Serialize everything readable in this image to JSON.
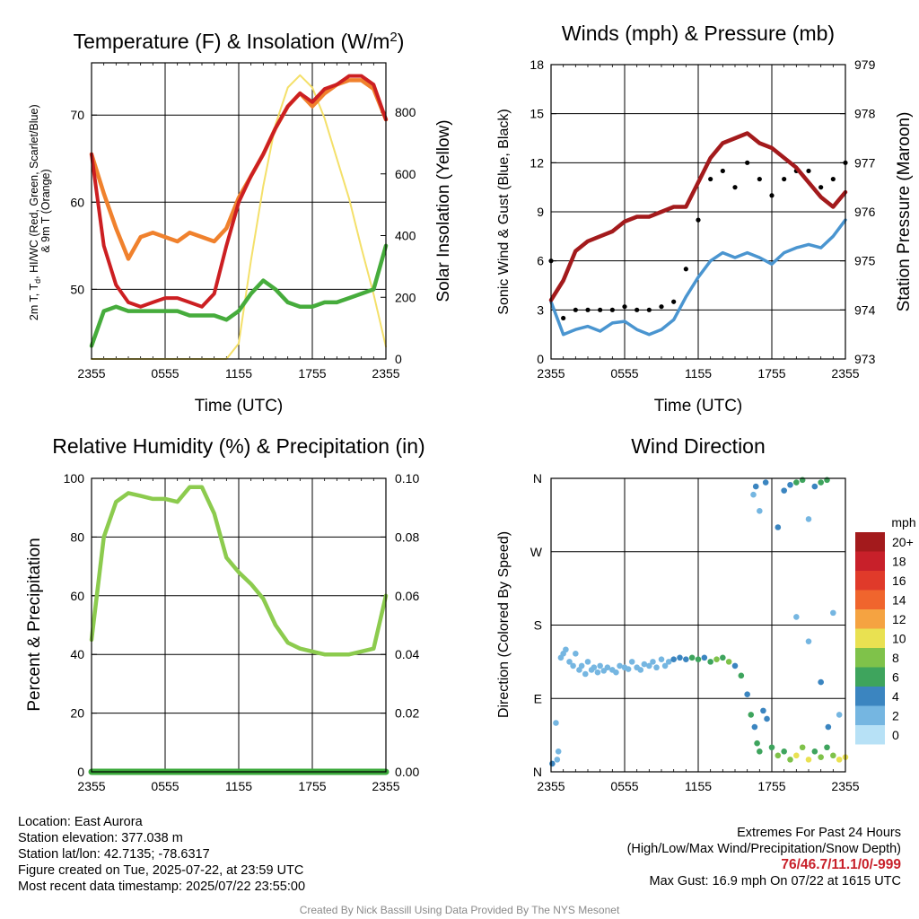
{
  "colors": {
    "temp": "#cc1f22",
    "temp9m": "#f0812d",
    "dewpoint": "#46ac3c",
    "insolation": "#f4e06a",
    "wind": "#4a95d0",
    "gust": "#000000",
    "pressure": "#a31a1c",
    "rh": "#8ccb4e",
    "precip": "#3aa83a"
  },
  "wind_speed_scale": {
    "unit": "mph",
    "labels": [
      "20+",
      "18",
      "16",
      "14",
      "12",
      "10",
      "8",
      "6",
      "4",
      "2",
      "0"
    ],
    "colors": [
      "#a31a1c",
      "#c8202a",
      "#e03a2a",
      "#f0652d",
      "#f5a341",
      "#e9e151",
      "#7fc24a",
      "#3ea45d",
      "#3b85c0",
      "#75b6e1",
      "#b7e1f6"
    ]
  },
  "time_tick_labels": [
    "2355",
    "0555",
    "1155",
    "1755",
    "2355"
  ],
  "chart_data": [
    {
      "type": "line",
      "title": "Temperature (F) & Insolation (W/m2)",
      "xlabel": "Time (UTC)",
      "ylabel": "2m T, Td, HI/WC (Red, Green, Scarlet/Blue) & 9m T (Orange)",
      "ylabel2": "Solar Insolation (Yellow)",
      "x": [
        "2355",
        "0055",
        "0155",
        "0255",
        "0355",
        "0455",
        "0555",
        "0655",
        "0755",
        "0855",
        "0955",
        "1055",
        "1155",
        "1255",
        "1355",
        "1455",
        "1555",
        "1655",
        "1755",
        "1855",
        "1955",
        "2055",
        "2155",
        "2255",
        "2355"
      ],
      "xticks": [
        "2355",
        "0555",
        "1155",
        "1755",
        "2355"
      ],
      "ylim": [
        42,
        76
      ],
      "yticks": [
        50,
        60,
        70
      ],
      "y2lim": [
        0,
        960
      ],
      "y2ticks": [
        0,
        200,
        400,
        600,
        800
      ],
      "series": [
        {
          "name": "2m T",
          "axis": "left",
          "values": [
            65.5,
            55,
            50.5,
            48.5,
            48,
            48.5,
            49,
            49,
            48.5,
            48,
            49.5,
            55,
            60,
            63,
            65.5,
            68.5,
            71,
            72.5,
            71.5,
            73,
            73.5,
            74.5,
            74.5,
            73.5,
            69.5
          ]
        },
        {
          "name": "9m T",
          "axis": "left",
          "values": [
            65.5,
            61,
            57,
            53.5,
            56,
            56.5,
            56,
            55.5,
            56.5,
            56,
            55.5,
            57,
            60.5,
            63,
            65.5,
            68.5,
            71,
            72.5,
            71,
            72.5,
            73.5,
            74,
            74,
            73,
            69.5
          ]
        },
        {
          "name": "Td",
          "axis": "left",
          "values": [
            43.5,
            47.5,
            48,
            47.5,
            47.5,
            47.5,
            47.5,
            47.5,
            47,
            47,
            47,
            46.5,
            47.5,
            49.5,
            51,
            50,
            48.5,
            48,
            48,
            48.5,
            48.5,
            49,
            49.5,
            50,
            55
          ]
        },
        {
          "name": "Solar Insolation",
          "axis": "right",
          "values": [
            0,
            0,
            0,
            0,
            0,
            0,
            0,
            0,
            0,
            0,
            0,
            0,
            50,
            320,
            560,
            760,
            880,
            920,
            880,
            780,
            650,
            520,
            360,
            210,
            40
          ]
        }
      ]
    },
    {
      "type": "line",
      "title": "Winds (mph) & Pressure (mb)",
      "xlabel": "Time (UTC)",
      "ylabel": "Sonic Wind & Gust (Blue, Black)",
      "ylabel2": "Station Pressure (Maroon)",
      "x": [
        "2355",
        "0055",
        "0155",
        "0255",
        "0355",
        "0455",
        "0555",
        "0655",
        "0755",
        "0855",
        "0955",
        "1055",
        "1155",
        "1255",
        "1355",
        "1455",
        "1555",
        "1655",
        "1755",
        "1855",
        "1955",
        "2055",
        "2155",
        "2255",
        "2355"
      ],
      "xticks": [
        "2355",
        "0555",
        "1155",
        "1755",
        "2355"
      ],
      "ylim": [
        0,
        18
      ],
      "yticks": [
        0,
        3,
        6,
        9,
        12,
        15,
        18
      ],
      "y2lim": [
        973,
        979
      ],
      "y2ticks": [
        973,
        974,
        975,
        976,
        977,
        978,
        979
      ],
      "series": [
        {
          "name": "Wind",
          "axis": "left",
          "values": [
            3.5,
            1.5,
            1.8,
            2,
            1.7,
            2.2,
            2.3,
            1.8,
            1.5,
            1.8,
            2.4,
            3.8,
            5,
            6,
            6.5,
            6.2,
            6.5,
            6.2,
            5.8,
            6.5,
            6.8,
            7,
            6.8,
            7.5,
            8.5
          ]
        },
        {
          "name": "Gust",
          "axis": "left",
          "values": [
            6,
            2.5,
            3,
            3,
            3,
            3,
            3.2,
            3,
            3,
            3.2,
            3.5,
            5.5,
            8.5,
            11,
            11.5,
            10.5,
            12,
            11,
            10,
            11,
            11.5,
            11.5,
            10.5,
            11,
            12
          ]
        },
        {
          "name": "Station Pressure",
          "axis": "right",
          "values": [
            974.2,
            974.6,
            975.2,
            975.4,
            975.5,
            975.6,
            975.8,
            975.9,
            975.9,
            976.0,
            976.1,
            976.1,
            976.6,
            977.1,
            977.4,
            977.5,
            977.6,
            977.4,
            977.3,
            977.1,
            976.9,
            976.6,
            976.3,
            976.1,
            976.4
          ]
        }
      ]
    },
    {
      "type": "line",
      "title": "Relative Humidity (%) & Precipitation (in)",
      "xlabel": "",
      "ylabel": "Percent & Precipitation",
      "x": [
        "2355",
        "0055",
        "0155",
        "0255",
        "0355",
        "0455",
        "0555",
        "0655",
        "0755",
        "0855",
        "0955",
        "1055",
        "1155",
        "1255",
        "1355",
        "1455",
        "1555",
        "1655",
        "1755",
        "1855",
        "1955",
        "2055",
        "2155",
        "2255",
        "2355"
      ],
      "xticks": [
        "2355",
        "0555",
        "1155",
        "1755",
        "2355"
      ],
      "ylim": [
        0,
        100
      ],
      "yticks": [
        0,
        20,
        40,
        60,
        80,
        100
      ],
      "y2lim": [
        0,
        0.1
      ],
      "y2ticks": [
        "0.00",
        "0.02",
        "0.04",
        "0.06",
        "0.08",
        "0.10"
      ],
      "series": [
        {
          "name": "Relative Humidity",
          "axis": "left",
          "values": [
            45,
            80,
            92,
            95,
            94,
            93,
            93,
            92,
            97,
            97,
            88,
            73,
            68,
            64,
            59,
            50,
            44,
            42,
            41,
            40,
            40,
            40,
            41,
            42,
            60
          ]
        },
        {
          "name": "Precipitation",
          "axis": "right",
          "values": [
            0,
            0,
            0,
            0,
            0,
            0,
            0,
            0,
            0,
            0,
            0,
            0,
            0,
            0,
            0,
            0,
            0,
            0,
            0,
            0,
            0,
            0,
            0,
            0,
            0
          ]
        }
      ]
    },
    {
      "type": "scatter",
      "title": "Wind Direction",
      "xlabel": "",
      "ylabel": "Direction (Colored By Speed)",
      "xticks": [
        "2355",
        "0555",
        "1155",
        "1755",
        "2355"
      ],
      "yticks": [
        "N",
        "E",
        "S",
        "W",
        "N"
      ],
      "ylim": [
        0,
        360
      ],
      "points": [
        [
          0.1,
          10,
          4
        ],
        [
          0.5,
          15,
          2
        ],
        [
          0.6,
          25,
          2
        ],
        [
          0.4,
          60,
          1
        ],
        [
          0.8,
          140,
          2
        ],
        [
          1.0,
          145,
          1
        ],
        [
          1.2,
          150,
          2
        ],
        [
          1.5,
          135,
          1
        ],
        [
          1.8,
          130,
          2
        ],
        [
          2.0,
          145,
          2
        ],
        [
          2.3,
          125,
          2
        ],
        [
          2.5,
          130,
          2
        ],
        [
          2.8,
          120,
          2
        ],
        [
          3.0,
          135,
          2
        ],
        [
          3.3,
          125,
          2
        ],
        [
          3.5,
          128,
          2
        ],
        [
          3.8,
          122,
          2
        ],
        [
          4.0,
          130,
          2
        ],
        [
          4.3,
          124,
          2
        ],
        [
          4.6,
          128,
          2
        ],
        [
          5.0,
          125,
          2
        ],
        [
          5.3,
          122,
          2
        ],
        [
          5.6,
          130,
          2
        ],
        [
          6.0,
          128,
          2
        ],
        [
          6.3,
          126,
          2
        ],
        [
          6.6,
          135,
          2
        ],
        [
          7.0,
          128,
          2
        ],
        [
          7.3,
          125,
          2
        ],
        [
          7.6,
          132,
          2
        ],
        [
          8.0,
          130,
          2
        ],
        [
          8.3,
          135,
          2
        ],
        [
          8.6,
          128,
          2
        ],
        [
          9.0,
          138,
          2
        ],
        [
          9.3,
          130,
          2
        ],
        [
          9.6,
          135,
          2
        ],
        [
          10.0,
          138,
          3
        ],
        [
          10.5,
          140,
          3
        ],
        [
          11.0,
          138,
          4
        ],
        [
          11.5,
          140,
          6
        ],
        [
          12.0,
          138,
          6
        ],
        [
          12.5,
          140,
          4
        ],
        [
          13.0,
          135,
          6
        ],
        [
          13.5,
          138,
          7
        ],
        [
          14.0,
          140,
          5
        ],
        [
          14.5,
          135,
          7
        ],
        [
          15.0,
          130,
          4
        ],
        [
          15.5,
          118,
          6
        ],
        [
          16.0,
          95,
          4
        ],
        [
          16.3,
          70,
          5
        ],
        [
          16.6,
          55,
          4
        ],
        [
          16.8,
          35,
          5
        ],
        [
          17.0,
          25,
          6
        ],
        [
          17.3,
          75,
          3
        ],
        [
          17.6,
          65,
          4
        ],
        [
          18.0,
          30,
          6
        ],
        [
          18.5,
          20,
          7
        ],
        [
          19.0,
          25,
          6
        ],
        [
          19.5,
          15,
          8
        ],
        [
          20.0,
          20,
          9
        ],
        [
          20.5,
          30,
          7
        ],
        [
          21.0,
          15,
          9
        ],
        [
          21.5,
          25,
          6
        ],
        [
          22.0,
          18,
          7
        ],
        [
          22.5,
          30,
          5
        ],
        [
          23.0,
          20,
          8
        ],
        [
          23.5,
          15,
          9
        ],
        [
          24.0,
          18,
          10
        ],
        [
          16.5,
          340,
          2
        ],
        [
          16.7,
          350,
          3
        ],
        [
          17.0,
          320,
          2
        ],
        [
          17.5,
          355,
          3
        ],
        [
          18.5,
          300,
          3
        ],
        [
          19.0,
          345,
          4
        ],
        [
          19.5,
          352,
          3
        ],
        [
          20.0,
          355,
          5
        ],
        [
          20.5,
          358,
          6
        ],
        [
          21.0,
          310,
          2
        ],
        [
          21.5,
          350,
          4
        ],
        [
          22.0,
          355,
          5
        ],
        [
          22.5,
          358,
          6
        ],
        [
          20.0,
          190,
          2
        ],
        [
          21.0,
          160,
          2
        ],
        [
          22.0,
          110,
          3
        ],
        [
          22.6,
          55,
          4
        ],
        [
          23.0,
          195,
          1
        ],
        [
          23.5,
          70,
          2
        ]
      ]
    }
  ],
  "info": {
    "location": "Location: East Aurora",
    "elevation": "Station elevation: 377.038 m",
    "latlon": "Station lat/lon: 42.7135; -78.6317",
    "created": "Figure created on Tue, 2025-07-22, at 23:59 UTC",
    "recent": "Most recent data timestamp: 2025/07/22 23:55:00"
  },
  "extremes": {
    "title": "Extremes For Past 24 Hours",
    "subtitle": "(High/Low/Max Wind/Precipitation/Snow Depth)",
    "values": "76/46.7/11.1/0/-999",
    "max_gust": "Max Gust: 16.9 mph On 07/22 at 1615 UTC"
  },
  "credit": "Created By Nick Bassill Using Data Provided By The NYS Mesonet"
}
